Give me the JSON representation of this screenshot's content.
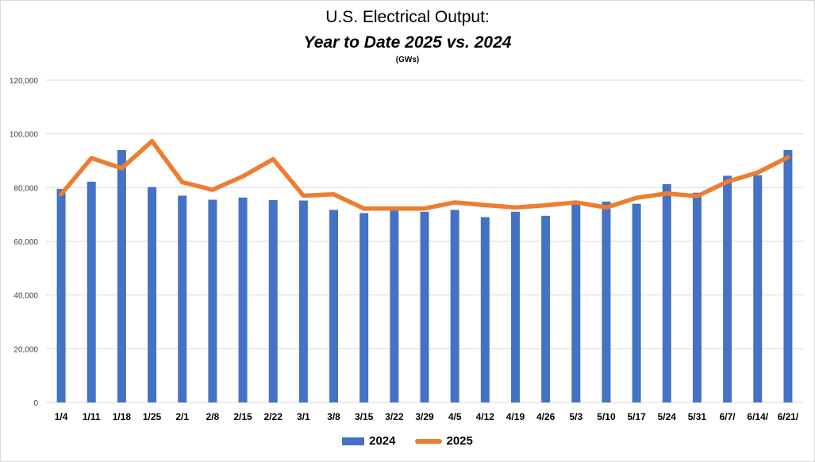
{
  "chart_data": {
    "type": "bar",
    "title": "U.S. Electrical Output:",
    "subtitle": "Year to Date 2025 vs. 2024",
    "unit": "(GWs)",
    "categories": [
      "1/4",
      "1/11",
      "1/18",
      "1/25",
      "2/1",
      "2/8",
      "2/15",
      "2/22",
      "3/1",
      "3/8",
      "3/15",
      "3/22",
      "3/29",
      "4/5",
      "4/12",
      "4/19",
      "4/26",
      "5/3",
      "5/10",
      "5/17",
      "5/24",
      "5/31",
      "6/7/",
      "6/14/",
      "6/21/"
    ],
    "ylim": [
      0,
      120000
    ],
    "yticks": [
      "0",
      "20,000",
      "40,000",
      "60,000",
      "80,000",
      "100,000",
      "120,000"
    ],
    "grid": true,
    "legend": "bottom",
    "series": [
      {
        "name": "2024",
        "kind": "bar",
        "color": "#4472c4",
        "values": [
          79500,
          82200,
          94000,
          80200,
          77000,
          75500,
          76300,
          75400,
          75200,
          71700,
          70500,
          71700,
          71000,
          71700,
          69000,
          71000,
          69500,
          73800,
          74800,
          74000,
          81300,
          78100,
          84400,
          84600,
          94000
        ]
      },
      {
        "name": "2025",
        "kind": "line",
        "color": "#ed7d31",
        "values": [
          77500,
          91000,
          87200,
          97300,
          82000,
          79200,
          84200,
          90600,
          77000,
          77500,
          72200,
          72200,
          72200,
          74500,
          73500,
          72600,
          73400,
          74500,
          72600,
          76200,
          77800,
          76800,
          82200,
          85600,
          91300
        ]
      }
    ]
  }
}
